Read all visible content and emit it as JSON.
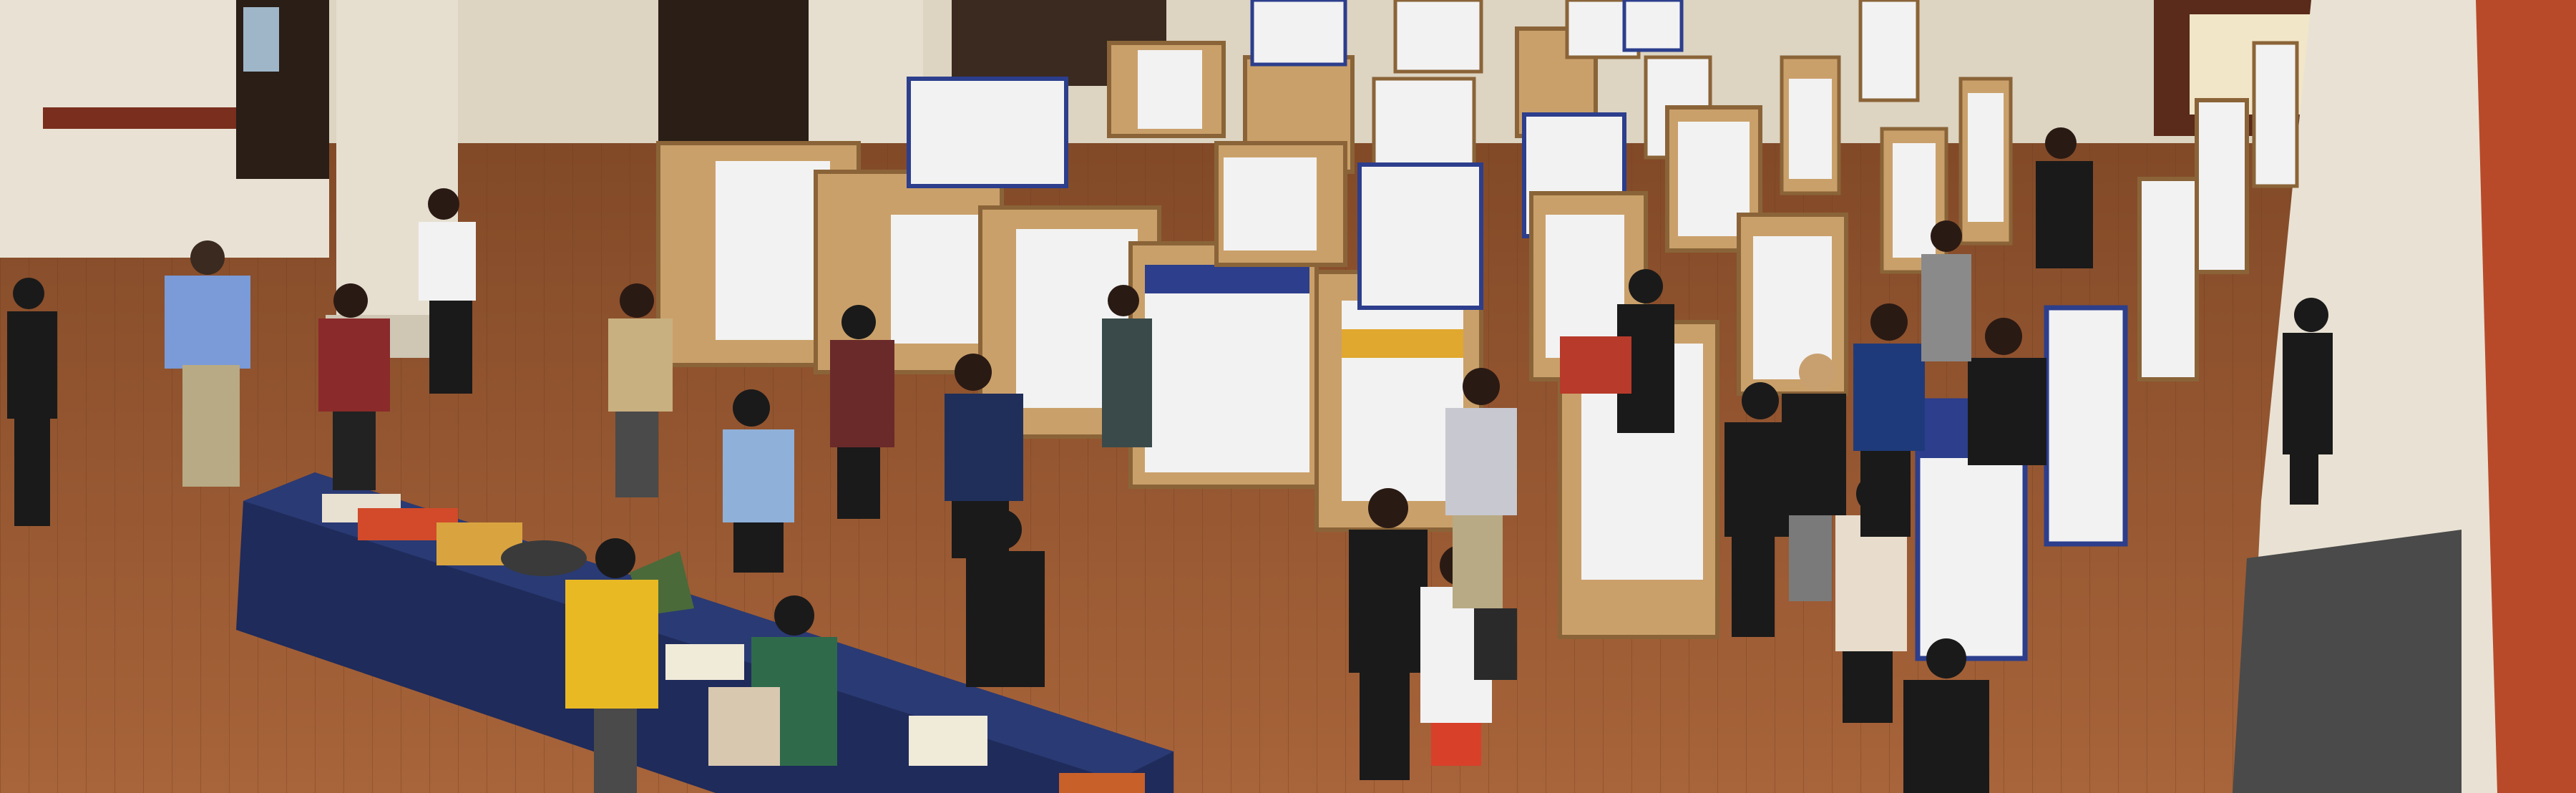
{
  "scene": {
    "palette": {
      "floor": "#9a5a32",
      "floor_dark": "#6e3c20",
      "wall": "#e9e2d4",
      "board": "#caa06a",
      "board_edge": "#8a6438",
      "poster": "#f2f2f2",
      "poster_accent_blue": "#2c3e8c",
      "poster_accent_gold": "#e0a82e",
      "tablecloth": "#1f2b5a",
      "yellow_jacket": "#e8b923",
      "balcony": "#b84a2a"
    }
  }
}
